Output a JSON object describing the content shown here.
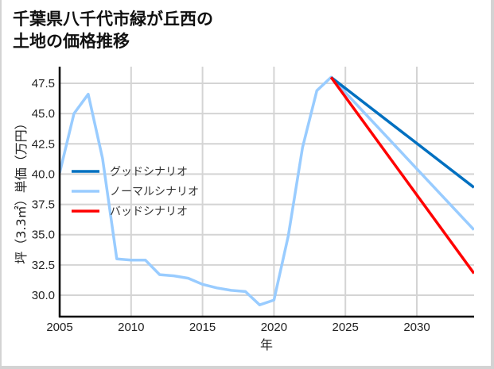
{
  "chart_data": {
    "type": "line",
    "title": "千葉県八千代市緑が丘西の土地の価格推移",
    "title_lines": [
      "千葉県八千代市緑が丘西の",
      "土地の価格推移"
    ],
    "xlabel": "年",
    "ylabel": "坪（3.3㎡）単価（万円）",
    "xlim": [
      2005,
      2034
    ],
    "ylim": [
      28.3,
      49.0
    ],
    "xticks": [
      2005,
      2010,
      2015,
      2020,
      2025,
      2030
    ],
    "yticks": [
      30.0,
      32.5,
      35.0,
      37.5,
      40.0,
      42.5,
      45.0,
      47.5
    ],
    "ytick_labels": [
      "30.0",
      "32.5",
      "35.0",
      "37.5",
      "40.0",
      "42.5",
      "45.0",
      "47.5"
    ],
    "grid": true,
    "legend_position": "center-left",
    "series": [
      {
        "name": "グッドシナリオ",
        "color": "#0070c0",
        "x": [
          2024,
          2034
        ],
        "values": [
          48.0,
          38.9
        ]
      },
      {
        "name": "ノーマルシナリオ",
        "color": "#99ccff",
        "x": [
          2005,
          2006,
          2007,
          2008,
          2009,
          2010,
          2011,
          2012,
          2013,
          2014,
          2015,
          2016,
          2017,
          2018,
          2019,
          2020,
          2021,
          2022,
          2023,
          2024,
          2034
        ],
        "values": [
          40.1,
          45.0,
          46.6,
          41.3,
          33.0,
          32.9,
          32.9,
          31.7,
          31.6,
          31.4,
          30.9,
          30.6,
          30.4,
          30.3,
          29.2,
          29.6,
          34.9,
          42.2,
          46.9,
          48.0,
          35.4
        ]
      },
      {
        "name": "バッドシナリオ",
        "color": "#ff0000",
        "x": [
          2024,
          2034
        ],
        "values": [
          48.0,
          31.8
        ]
      }
    ]
  },
  "legend": {
    "items": [
      {
        "label": "グッドシナリオ",
        "color": "#0070c0"
      },
      {
        "label": "ノーマルシナリオ",
        "color": "#99ccff"
      },
      {
        "label": "バッドシナリオ",
        "color": "#ff0000"
      }
    ]
  }
}
